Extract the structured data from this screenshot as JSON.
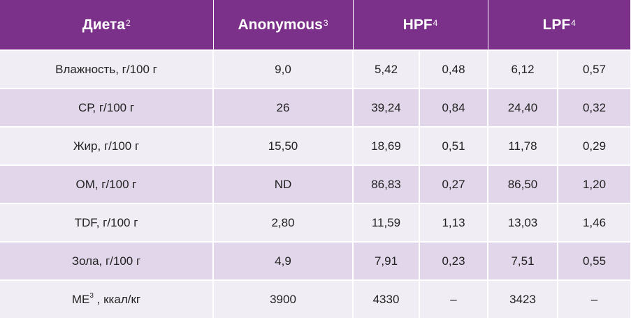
{
  "header": {
    "col1": {
      "text": "Диета",
      "sup": "2"
    },
    "col2": {
      "text": "Anonymous",
      "sup": "3"
    },
    "col3": {
      "text": "HPF",
      "sup": "4"
    },
    "col4": {
      "text": "LPF",
      "sup": "4"
    }
  },
  "rows": [
    {
      "label": "Влажность, г/100 г",
      "anon": "9,0",
      "hpf_a": "5,42",
      "hpf_b": "0,48",
      "lpf_a": "6,12",
      "lpf_b": "0,57"
    },
    {
      "label": "СР, г/100 г",
      "anon": "26",
      "hpf_a": "39,24",
      "hpf_b": "0,84",
      "lpf_a": "24,40",
      "lpf_b": "0,32"
    },
    {
      "label": "Жир, г/100 г",
      "anon": "15,50",
      "hpf_a": "18,69",
      "hpf_b": "0,51",
      "lpf_a": "11,78",
      "lpf_b": "0,29"
    },
    {
      "label": "ОМ, г/100 г",
      "anon": "ND",
      "hpf_a": "86,83",
      "hpf_b": "0,27",
      "lpf_a": "86,50",
      "lpf_b": "1,20"
    },
    {
      "label": "TDF, г/100 г",
      "anon": "2,80",
      "hpf_a": "11,59",
      "hpf_b": "1,13",
      "lpf_a": "13,03",
      "lpf_b": "1,46"
    },
    {
      "label": "Зола, г/100 г",
      "anon": "4,9",
      "hpf_a": "7,91",
      "hpf_b": "0,23",
      "lpf_a": "7,51",
      "lpf_b": "0,55"
    },
    {
      "label_main": "ME",
      "label_sup": "3",
      "label_rest": " , ккал/кг",
      "anon": "3900",
      "hpf_a": "4330",
      "hpf_b": "–",
      "lpf_a": "3423",
      "lpf_b": "–"
    }
  ]
}
